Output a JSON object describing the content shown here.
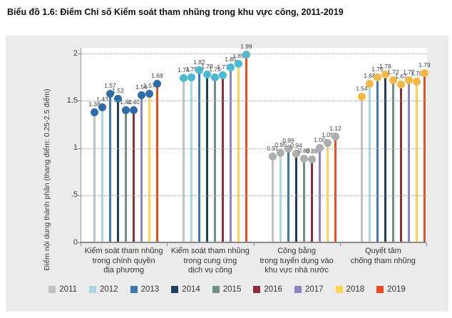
{
  "title": "Biểu đồ 1.6: Điểm Chỉ số Kiểm soát tham nhũng trong khu vực công, 2011-2019",
  "colors": {
    "panel_bg": "#ebebeb",
    "plot_bg": "#ffffff",
    "axis": "#8a8a8a",
    "gridline": "#adadad",
    "text": "#3b3b3b"
  },
  "chart_data": {
    "type": "bar",
    "subtype": "grouped-lollipop",
    "title": "Biểu đồ 1.6: Điểm Chỉ số Kiểm soát tham nhũng trong khu vực công, 2011-2019",
    "ylabel": "Điểm nội dung thành phần (thang điểm: 0.25-2.5 điểm)",
    "xlabel": "",
    "ylim": [
      0,
      2
    ],
    "yticks": [
      {
        "value": 0,
        "label": "0"
      },
      {
        "value": 0.5,
        "label": ".5"
      },
      {
        "value": 1,
        "label": "1"
      },
      {
        "value": 1.5,
        "label": "1.5"
      },
      {
        "value": 2,
        "label": "2"
      }
    ],
    "grid": "horizontal-dotted",
    "legend_position": "bottom",
    "categories": [
      {
        "lines": [
          "Kiểm soát tham nhũng",
          "trong chính quyền",
          "địa phương"
        ],
        "marker_color": "#2d6ca9"
      },
      {
        "lines": [
          "Kiểm soát tham nhũng",
          "trong cung ứng",
          "dịch vụ công"
        ],
        "marker_color": "#4cb9d2"
      },
      {
        "lines": [
          "Công bằng",
          "trong tuyển dụng vào",
          "khu vực nhà nước"
        ],
        "marker_color": "#aeaeae"
      },
      {
        "lines": [
          "Quyết tâm",
          "chống tham nhũng"
        ],
        "marker_color": "#f3b843"
      }
    ],
    "series": [
      {
        "name": "2011",
        "color": "#c2c2c2",
        "values": [
          1.38,
          1.74,
          0.91,
          1.54
        ]
      },
      {
        "name": "2012",
        "color": "#a9d7e6",
        "values": [
          1.43,
          1.75,
          0.95,
          1.68
        ]
      },
      {
        "name": "2013",
        "color": "#3d78b5",
        "values": [
          1.57,
          1.82,
          0.99,
          1.75
        ]
      },
      {
        "name": "2014",
        "color": "#1e3f60",
        "values": [
          1.52,
          1.78,
          0.94,
          1.78
        ]
      },
      {
        "name": "2015",
        "color": "#71917e",
        "values": [
          1.4,
          1.75,
          0.89,
          1.72
        ]
      },
      {
        "name": "2016",
        "color": "#8e2e39",
        "values": [
          1.4,
          1.77,
          0.88,
          1.67
        ]
      },
      {
        "name": "2017",
        "color": "#8d85c3",
        "values": [
          1.56,
          1.85,
          1.0,
          1.72
        ]
      },
      {
        "name": "2018",
        "color": "#fdd44f",
        "values": [
          1.57,
          1.89,
          1.05,
          1.7
        ]
      },
      {
        "name": "2019",
        "color": "#f04b20",
        "values": [
          1.68,
          1.99,
          1.12,
          1.79
        ]
      }
    ],
    "value_label_decimals": 2
  }
}
